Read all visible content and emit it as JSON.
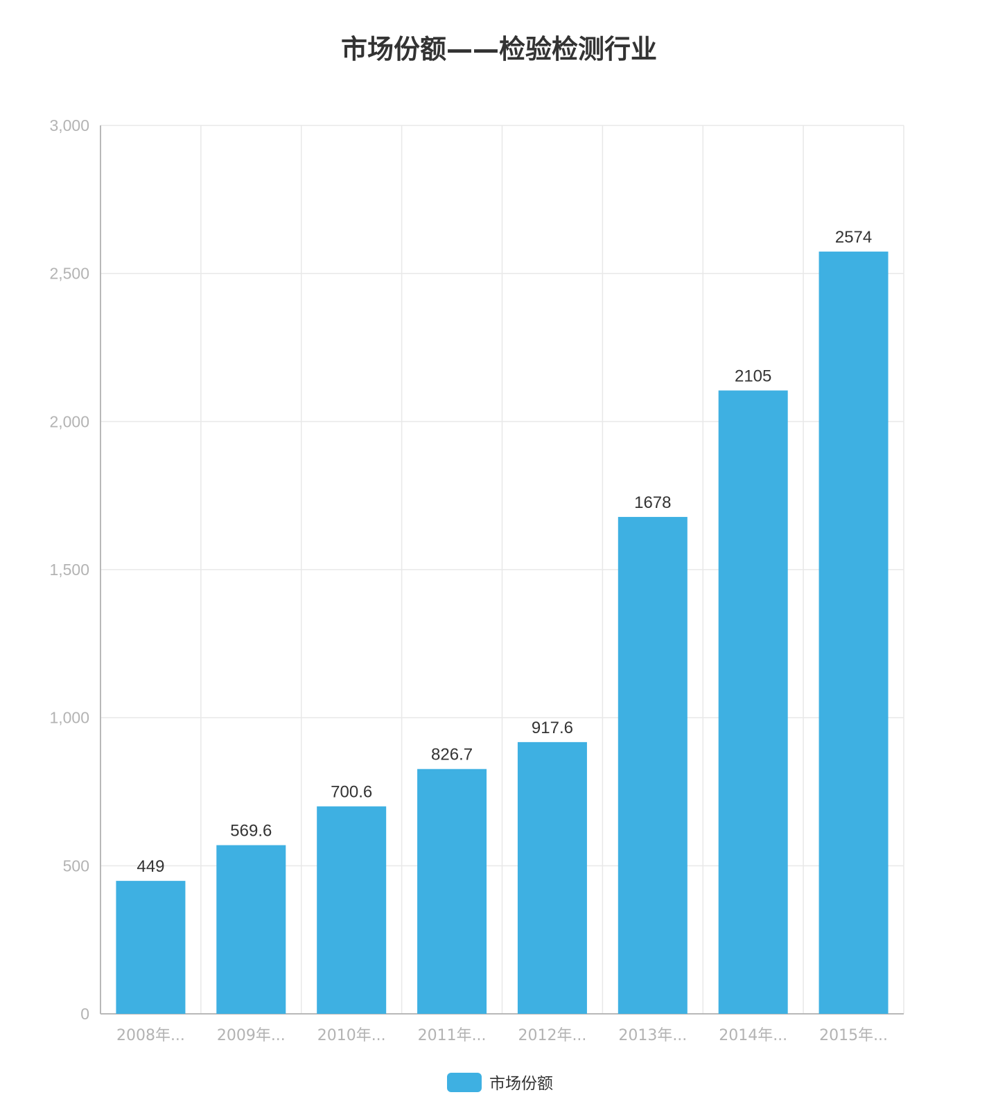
{
  "chart_data": {
    "type": "bar",
    "title": "市场份额——检验检测行业",
    "categories": [
      "2008年...",
      "2009年...",
      "2010年...",
      "2011年...",
      "2012年...",
      "2013年...",
      "2014年...",
      "2015年..."
    ],
    "series": [
      {
        "name": "市场份额",
        "values": [
          449,
          569.6,
          700.6,
          826.7,
          917.6,
          1678,
          2105,
          2574
        ],
        "color": "#3eb0e2"
      }
    ],
    "data_labels": [
      "449",
      "569.6",
      "700.6",
      "826.7",
      "917.6",
      "1678",
      "2105",
      "2574"
    ],
    "y_ticks": [
      0,
      500,
      1000,
      1500,
      2000,
      2500,
      3000
    ],
    "y_tick_labels": [
      "0",
      "500",
      "1,000",
      "1,500",
      "2,000",
      "2,500",
      "3,000"
    ],
    "ylim": [
      0,
      3000
    ],
    "xlabel": "",
    "ylabel": "",
    "grid": true,
    "legend_position": "bottom-center"
  }
}
